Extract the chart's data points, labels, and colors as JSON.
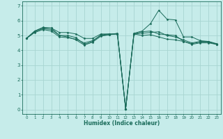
{
  "background_color": "#c6ecea",
  "grid_color": "#a8d5d1",
  "line_color": "#1a6b5a",
  "xlabel": "Humidex (Indice chaleur)",
  "ylim": [
    -0.3,
    7.3
  ],
  "xlim": [
    -0.5,
    23.5
  ],
  "yticks": [
    0,
    1,
    2,
    3,
    4,
    5,
    6,
    7
  ],
  "xticks": [
    0,
    1,
    2,
    3,
    4,
    5,
    6,
    7,
    8,
    9,
    10,
    11,
    12,
    13,
    14,
    15,
    16,
    17,
    18,
    19,
    20,
    21,
    22,
    23
  ],
  "series": [
    [
      4.8,
      5.3,
      5.5,
      5.5,
      5.0,
      5.0,
      4.85,
      4.4,
      4.6,
      5.05,
      5.1,
      5.1,
      0.05,
      5.1,
      5.15,
      5.2,
      5.25,
      5.0,
      4.9,
      4.7,
      4.5,
      4.6,
      4.6,
      4.4
    ],
    [
      4.8,
      5.2,
      5.4,
      5.3,
      4.9,
      4.85,
      4.75,
      4.5,
      4.65,
      5.0,
      5.05,
      5.1,
      0.05,
      5.15,
      5.3,
      5.8,
      6.7,
      6.1,
      6.05,
      4.9,
      4.9,
      4.65,
      4.6,
      4.45
    ],
    [
      4.8,
      5.25,
      5.45,
      5.4,
      5.0,
      4.9,
      4.7,
      4.35,
      4.55,
      4.95,
      5.05,
      5.15,
      0.05,
      5.1,
      5.25,
      5.3,
      5.1,
      5.05,
      5.0,
      4.6,
      4.45,
      4.55,
      4.55,
      4.4
    ],
    [
      4.8,
      5.3,
      5.55,
      5.5,
      5.2,
      5.2,
      5.1,
      4.8,
      4.8,
      5.1,
      5.1,
      5.1,
      0.05,
      5.1,
      5.0,
      5.05,
      4.9,
      4.75,
      4.7,
      4.6,
      4.4,
      4.5,
      4.5,
      4.4
    ]
  ]
}
